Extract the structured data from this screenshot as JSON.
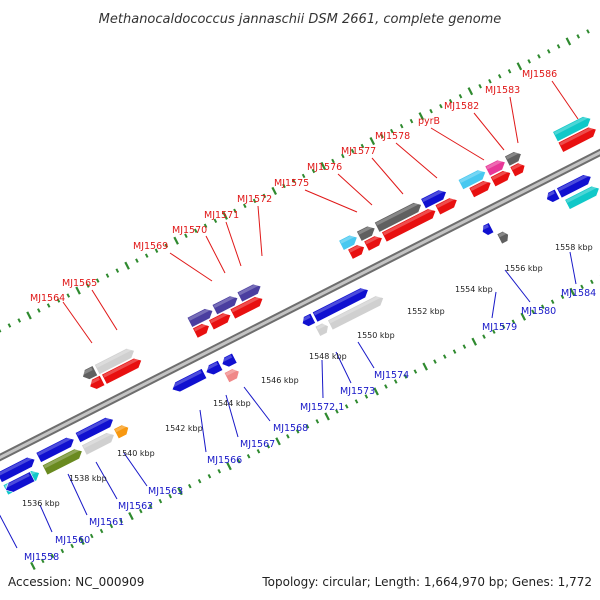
{
  "title": "Methanocaldococcus jannaschii DSM 2661, complete genome",
  "footer": {
    "accession": "Accession: NC_000909",
    "summary": "Topology: circular; Length: 1,664,970 bp; Genes: 1,772"
  },
  "colors": {
    "backbone": "#9a9a9a",
    "tick": "#2f8a2f",
    "upper_label": "#e01818",
    "lower_label": "#1818c8"
  },
  "scale": {
    "unit": "kbp",
    "labels": [
      {
        "text": "1536 kbp"
      },
      {
        "text": "1538 kbp"
      },
      {
        "text": "1540 kbp"
      },
      {
        "text": "1542 kbp"
      },
      {
        "text": "1544 kbp"
      },
      {
        "text": "1546 kbp"
      },
      {
        "text": "1548 kbp"
      },
      {
        "text": "1550 kbp"
      },
      {
        "text": "1552 kbp"
      },
      {
        "text": "1554 kbp"
      },
      {
        "text": "1556 kbp"
      },
      {
        "text": "1558 kbp"
      }
    ]
  },
  "upper_labels": [
    {
      "text": "MJ1564"
    },
    {
      "text": "MJ1565"
    },
    {
      "text": "MJ1569"
    },
    {
      "text": "MJ1570"
    },
    {
      "text": "MJ1571"
    },
    {
      "text": "MJ1572"
    },
    {
      "text": "MJ1575"
    },
    {
      "text": "MJ1576"
    },
    {
      "text": "MJ1577"
    },
    {
      "text": "MJ1578"
    },
    {
      "text": "pyrB"
    },
    {
      "text": "MJ1582"
    },
    {
      "text": "MJ1583"
    },
    {
      "text": "MJ1586"
    }
  ],
  "lower_labels": [
    {
      "text": "MJ1558"
    },
    {
      "text": "MJ1560"
    },
    {
      "text": "MJ1561"
    },
    {
      "text": "MJ1562"
    },
    {
      "text": "MJ1563"
    },
    {
      "text": "MJ1566"
    },
    {
      "text": "MJ1567"
    },
    {
      "text": "MJ1568"
    },
    {
      "text": "MJ1572.1"
    },
    {
      "text": "MJ1573"
    },
    {
      "text": "MJ1574"
    },
    {
      "text": "MJ1579"
    },
    {
      "text": "MJ1580"
    },
    {
      "text": "MJ1584"
    }
  ],
  "genes": [
    {
      "color": "#1010d0"
    },
    {
      "color": "#e81010"
    },
    {
      "color": "#a8a8a8"
    },
    {
      "color": "#d0d0d0"
    },
    {
      "color": "#606060"
    },
    {
      "color": "#48c8f0"
    },
    {
      "color": "#10c8c8"
    },
    {
      "color": "#4a3ea0"
    },
    {
      "color": "#e83898"
    },
    {
      "color": "#6a8a20"
    },
    {
      "color": "#f89810"
    },
    {
      "color": "#f08888"
    }
  ]
}
